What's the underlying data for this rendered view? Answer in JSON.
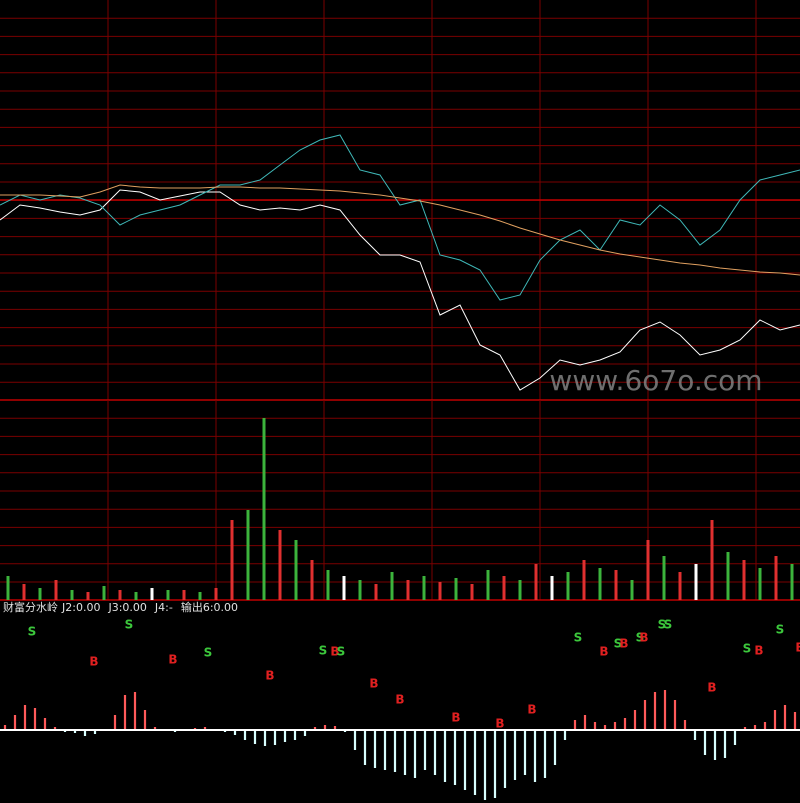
{
  "chart_data": [
    {
      "type": "line",
      "grid": true,
      "xlim": [
        0,
        240
      ],
      "ylim": [
        -10,
        10
      ],
      "x": [
        0,
        6,
        12,
        18,
        24,
        30,
        36,
        42,
        48,
        54,
        60,
        66,
        72,
        78,
        84,
        90,
        96,
        102,
        108,
        114,
        120,
        126,
        132,
        138,
        144,
        150,
        156,
        162,
        168,
        174,
        180,
        186,
        192,
        198,
        204,
        210,
        216,
        222,
        228,
        234,
        240
      ],
      "series": [
        {
          "color": "#ffffff",
          "values": [
            -1,
            -0.25,
            -0.4,
            -0.6,
            -0.75,
            -0.5,
            0.5,
            0.4,
            0,
            0.2,
            0.4,
            0.4,
            -0.25,
            -0.5,
            -0.4,
            -0.5,
            -0.25,
            -0.5,
            -1.75,
            -2.75,
            -2.75,
            -3.1,
            -5.75,
            -5.25,
            -7.25,
            -7.75,
            -9.5,
            -8.9,
            -8,
            -8.25,
            -8,
            -7.6,
            -6.5,
            -6.1,
            -6.75,
            -7.75,
            -7.5,
            -7,
            -6,
            -6.5,
            -6.25
          ]
        },
        {
          "color": "#3fb8b8",
          "values": [
            -0.25,
            0.25,
            0,
            0.25,
            0.1,
            -0.25,
            -1.25,
            -0.75,
            -0.5,
            -0.25,
            0.25,
            0.75,
            0.75,
            1,
            1.75,
            2.5,
            3,
            3.25,
            1.5,
            1.25,
            -0.25,
            0,
            -2.75,
            -3,
            -3.5,
            -5,
            -4.75,
            -3,
            -2,
            -1.5,
            -2.5,
            -1,
            -1.25,
            -0.25,
            -1,
            -2.25,
            -1.5,
            0,
            1,
            1.25,
            1.5
          ]
        },
        {
          "color": "#e0a060",
          "values": [
            0.25,
            0.25,
            0.25,
            0.2,
            0.15,
            0.4,
            0.75,
            0.65,
            0.6,
            0.6,
            0.6,
            0.65,
            0.65,
            0.6,
            0.6,
            0.55,
            0.5,
            0.45,
            0.35,
            0.25,
            0.1,
            -0.05,
            -0.25,
            -0.5,
            -0.75,
            -1.05,
            -1.4,
            -1.7,
            -2,
            -2.25,
            -2.5,
            -2.7,
            -2.85,
            -3,
            -3.15,
            -3.25,
            -3.4,
            -3.5,
            -3.6,
            -3.65,
            -3.75
          ]
        }
      ]
    },
    {
      "type": "bar",
      "grid": true,
      "ylim": [
        0,
        100
      ],
      "values": [
        12,
        8,
        6,
        10,
        5,
        4,
        7,
        5,
        4,
        6,
        5,
        5,
        4,
        6,
        40,
        45,
        91,
        35,
        30,
        20,
        15,
        12,
        10,
        8,
        14,
        10,
        12,
        9,
        11,
        8,
        15,
        12,
        10,
        18,
        12,
        14,
        20,
        16,
        15,
        10,
        30,
        22,
        14,
        18,
        40,
        24,
        20,
        16,
        22,
        18
      ],
      "colors": [
        "#3cb43c",
        "#e03030",
        "#3cb43c",
        "#e03030",
        "#3cb43c",
        "#e03030",
        "#3cb43c",
        "#e03030",
        "#3cb43c",
        "#ffffff",
        "#3cb43c",
        "#e03030",
        "#3cb43c",
        "#e03030",
        "#e03030",
        "#3cb43c",
        "#3cb43c",
        "#e03030",
        "#3cb43c",
        "#e03030",
        "#3cb43c",
        "#ffffff",
        "#3cb43c",
        "#e03030",
        "#3cb43c",
        "#e03030",
        "#3cb43c",
        "#e03030",
        "#3cb43c",
        "#e03030",
        "#3cb43c",
        "#e03030",
        "#3cb43c",
        "#e03030",
        "#ffffff",
        "#3cb43c",
        "#e03030",
        "#3cb43c",
        "#e03030",
        "#3cb43c",
        "#e03030",
        "#3cb43c",
        "#e03030",
        "#ffffff",
        "#e03030",
        "#3cb43c",
        "#e03030",
        "#3cb43c",
        "#e03030",
        "#3cb43c"
      ]
    },
    {
      "type": "bar",
      "title": "财富分水岭",
      "legend": [
        "J2:0.00",
        "J3:0.00",
        "J4:-",
        "输出6:0.00"
      ],
      "ylim": [
        -80,
        120
      ],
      "pos_color": "#ff5a5a",
      "neg_color": "#d8ffff",
      "values": [
        5,
        15,
        25,
        22,
        12,
        3,
        -2,
        -3,
        -6,
        -4,
        -1,
        15,
        35,
        38,
        20,
        3,
        1,
        -2,
        -1,
        2,
        3,
        1,
        -2,
        -5,
        -10,
        -14,
        -16,
        -15,
        -12,
        -10,
        -6,
        3,
        5,
        4,
        -2,
        -20,
        -35,
        -38,
        -40,
        -42,
        -45,
        -48,
        -40,
        -45,
        -52,
        -55,
        -60,
        -65,
        -70,
        -68,
        -58,
        -50,
        -45,
        -52,
        -48,
        -35,
        -10,
        10,
        15,
        8,
        5,
        8,
        12,
        20,
        30,
        38,
        40,
        30,
        10,
        -10,
        -25,
        -30,
        -28,
        -15,
        3,
        5,
        8,
        20,
        25,
        18
      ],
      "signal_colors": {
        "S": "#3cc83c",
        "B": "#e02020"
      },
      "signals": [
        {
          "text": "S",
          "x": 3.2,
          "y": 98
        },
        {
          "text": "B",
          "x": 9.4,
          "y": 68
        },
        {
          "text": "S",
          "x": 12.9,
          "y": 105
        },
        {
          "text": "B",
          "x": 17.3,
          "y": 70
        },
        {
          "text": "S",
          "x": 20.8,
          "y": 77
        },
        {
          "text": "B",
          "x": 27,
          "y": 54
        },
        {
          "text": "S",
          "x": 32.3,
          "y": 79
        },
        {
          "text": "B",
          "x": 33.5,
          "y": 78
        },
        {
          "text": "S",
          "x": 34.1,
          "y": 78
        },
        {
          "text": "B",
          "x": 37.4,
          "y": 46
        },
        {
          "text": "B",
          "x": 40,
          "y": 30
        },
        {
          "text": "B",
          "x": 45.6,
          "y": 12
        },
        {
          "text": "B",
          "x": 50,
          "y": 6
        },
        {
          "text": "B",
          "x": 53.2,
          "y": 20
        },
        {
          "text": "S",
          "x": 57.8,
          "y": 92
        },
        {
          "text": "B",
          "x": 60.4,
          "y": 78
        },
        {
          "text": "S",
          "x": 61.8,
          "y": 86
        },
        {
          "text": "B",
          "x": 62.4,
          "y": 86
        },
        {
          "text": "S",
          "x": 64,
          "y": 92
        },
        {
          "text": "B",
          "x": 64.4,
          "y": 92
        },
        {
          "text": "S",
          "x": 66.2,
          "y": 105
        },
        {
          "text": "S",
          "x": 66.8,
          "y": 105
        },
        {
          "text": "B",
          "x": 71.2,
          "y": 42
        },
        {
          "text": "S",
          "x": 74.7,
          "y": 81
        },
        {
          "text": "B",
          "x": 75.9,
          "y": 79
        },
        {
          "text": "S",
          "x": 78,
          "y": 100
        },
        {
          "text": "B",
          "x": 80,
          "y": 82
        }
      ]
    }
  ],
  "watermark": "www.6o7o.com"
}
